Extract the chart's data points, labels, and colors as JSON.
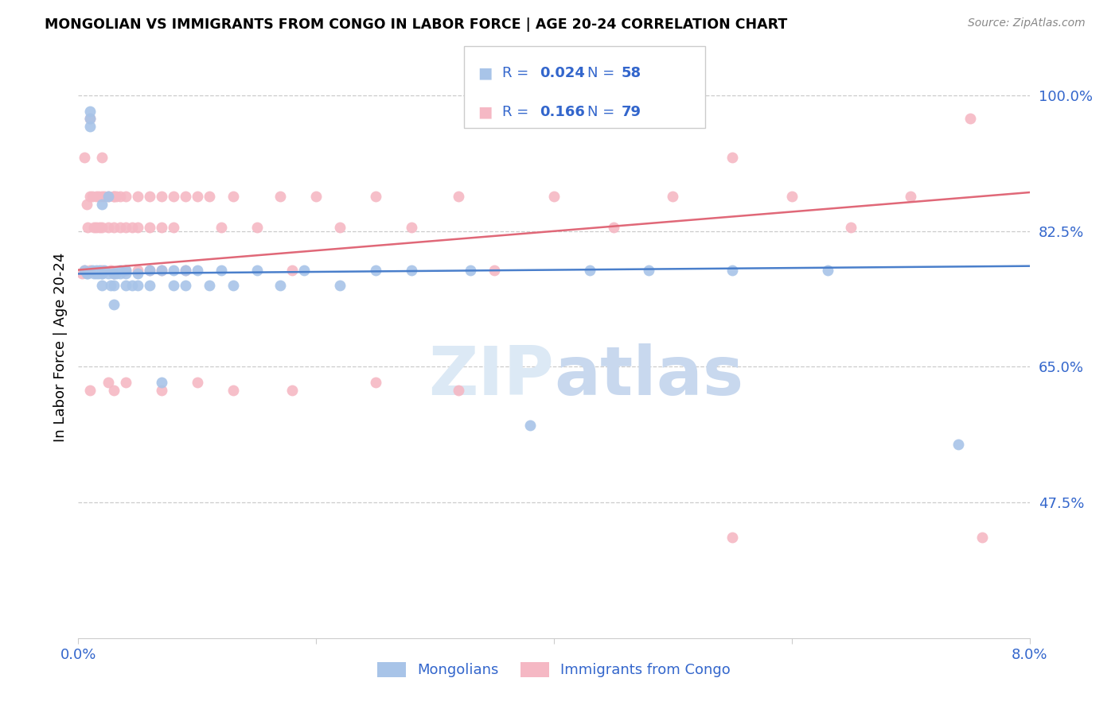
{
  "title": "MONGOLIAN VS IMMIGRANTS FROM CONGO IN LABOR FORCE | AGE 20-24 CORRELATION CHART",
  "source": "Source: ZipAtlas.com",
  "ylabel": "In Labor Force | Age 20-24",
  "ytick_labels": [
    "100.0%",
    "82.5%",
    "65.0%",
    "47.5%"
  ],
  "ytick_values": [
    1.0,
    0.825,
    0.65,
    0.475
  ],
  "xmin": 0.0,
  "xmax": 0.08,
  "ymin": 0.3,
  "ymax": 1.05,
  "legend_blue_r": "R = ",
  "legend_blue_r_val": "0.024",
  "legend_blue_n": "N = ",
  "legend_blue_n_val": "58",
  "legend_pink_r": "R = ",
  "legend_pink_r_val": "0.166",
  "legend_pink_n": "N = ",
  "legend_pink_n_val": "79",
  "blue_color": "#a8c4e8",
  "pink_color": "#f5b8c4",
  "blue_line_color": "#4a7fcb",
  "pink_line_color": "#e06878",
  "legend_r_color": "#3366cc",
  "legend_val_color": "#3366cc",
  "axis_label_color": "#3366cc",
  "watermark_color": "#dce9f5",
  "blue_scatter_x": [
    0.0005,
    0.0007,
    0.0008,
    0.001,
    0.001,
    0.001,
    0.0012,
    0.0013,
    0.0015,
    0.0015,
    0.0017,
    0.0018,
    0.002,
    0.002,
    0.002,
    0.002,
    0.0022,
    0.0025,
    0.0025,
    0.0027,
    0.003,
    0.003,
    0.003,
    0.003,
    0.0032,
    0.0035,
    0.0035,
    0.004,
    0.004,
    0.004,
    0.0045,
    0.005,
    0.005,
    0.006,
    0.006,
    0.007,
    0.007,
    0.008,
    0.008,
    0.009,
    0.009,
    0.01,
    0.011,
    0.012,
    0.013,
    0.015,
    0.017,
    0.019,
    0.022,
    0.025,
    0.028,
    0.033,
    0.038,
    0.043,
    0.048,
    0.055,
    0.063,
    0.074
  ],
  "blue_scatter_y": [
    0.775,
    0.77,
    0.77,
    0.96,
    0.97,
    0.98,
    0.775,
    0.77,
    0.775,
    0.77,
    0.77,
    0.775,
    0.86,
    0.77,
    0.77,
    0.755,
    0.775,
    0.87,
    0.77,
    0.755,
    0.77,
    0.77,
    0.755,
    0.73,
    0.77,
    0.775,
    0.77,
    0.775,
    0.77,
    0.755,
    0.755,
    0.77,
    0.755,
    0.775,
    0.755,
    0.775,
    0.63,
    0.775,
    0.755,
    0.775,
    0.755,
    0.775,
    0.755,
    0.775,
    0.755,
    0.775,
    0.755,
    0.775,
    0.755,
    0.775,
    0.775,
    0.775,
    0.575,
    0.775,
    0.775,
    0.775,
    0.775,
    0.55
  ],
  "pink_scatter_x": [
    0.0003,
    0.0005,
    0.0005,
    0.0007,
    0.0008,
    0.001,
    0.001,
    0.001,
    0.0012,
    0.0013,
    0.0015,
    0.0015,
    0.0017,
    0.0018,
    0.002,
    0.002,
    0.002,
    0.002,
    0.0022,
    0.0025,
    0.0025,
    0.0027,
    0.003,
    0.003,
    0.003,
    0.003,
    0.0032,
    0.0035,
    0.0035,
    0.004,
    0.004,
    0.004,
    0.0045,
    0.005,
    0.005,
    0.005,
    0.006,
    0.006,
    0.007,
    0.007,
    0.007,
    0.008,
    0.008,
    0.009,
    0.009,
    0.01,
    0.011,
    0.012,
    0.013,
    0.015,
    0.017,
    0.018,
    0.02,
    0.022,
    0.025,
    0.028,
    0.032,
    0.035,
    0.04,
    0.045,
    0.05,
    0.055,
    0.06,
    0.065,
    0.07,
    0.075,
    0.076,
    0.055,
    0.003,
    0.006,
    0.001,
    0.0025,
    0.004,
    0.007,
    0.01,
    0.013,
    0.018,
    0.025,
    0.032
  ],
  "pink_scatter_y": [
    0.77,
    0.92,
    0.775,
    0.86,
    0.83,
    0.97,
    0.87,
    0.775,
    0.87,
    0.83,
    0.87,
    0.83,
    0.87,
    0.83,
    0.92,
    0.87,
    0.83,
    0.775,
    0.87,
    0.87,
    0.83,
    0.775,
    0.87,
    0.87,
    0.83,
    0.77,
    0.87,
    0.87,
    0.83,
    0.87,
    0.83,
    0.775,
    0.83,
    0.87,
    0.83,
    0.775,
    0.87,
    0.83,
    0.87,
    0.83,
    0.775,
    0.87,
    0.83,
    0.87,
    0.775,
    0.87,
    0.87,
    0.83,
    0.87,
    0.83,
    0.87,
    0.775,
    0.87,
    0.83,
    0.87,
    0.83,
    0.87,
    0.775,
    0.87,
    0.83,
    0.87,
    0.43,
    0.87,
    0.83,
    0.87,
    0.97,
    0.43,
    0.92,
    0.62,
    0.775,
    0.62,
    0.63,
    0.63,
    0.62,
    0.63,
    0.62,
    0.62,
    0.63,
    0.62
  ],
  "blue_trend_x": [
    0.0,
    0.08
  ],
  "blue_trend_y": [
    0.77,
    0.78
  ],
  "pink_trend_x": [
    0.0,
    0.08
  ],
  "pink_trend_y": [
    0.775,
    0.875
  ],
  "background_color": "#ffffff",
  "grid_color": "#cccccc",
  "axis_color": "#cccccc"
}
